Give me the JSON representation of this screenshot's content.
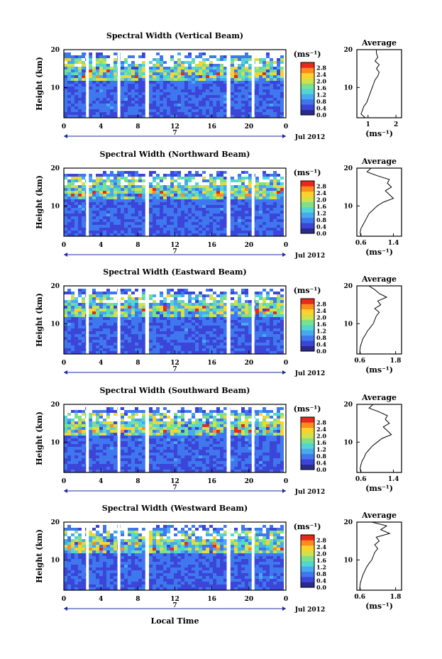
{
  "figure": {
    "x_axis_title": "Local Time",
    "colorbar_unit": "(ms⁻¹)",
    "colorbar_ticks": [
      "0.0",
      "0.4",
      "0.8",
      "1.2",
      "1.6",
      "2.0",
      "2.4",
      "2.8"
    ],
    "colorbar_colors": [
      "#2a2a8a",
      "#3b45d8",
      "#3f78ee",
      "#48a8f0",
      "#52d6d2",
      "#7ee08a",
      "#d2e04a",
      "#ffd12a",
      "#ff8a1e",
      "#e8281a"
    ],
    "date_label": "Jul 2012",
    "day_tick_label": "7",
    "average_title": "Average"
  },
  "chart_data": [
    {
      "type": "heatmap",
      "title": "Spectral Width (Vertical Beam)",
      "ylabel": "Height (km)",
      "xlabel": "Local Time",
      "x_ticks": [
        "0",
        "4",
        "8",
        "12",
        "16",
        "20",
        "0"
      ],
      "y_ticks": [
        "10",
        "20"
      ],
      "xlim": [
        0,
        24
      ],
      "ylim": [
        2,
        20
      ],
      "z_label": "(ms⁻¹)",
      "z_range": [
        0.0,
        2.8
      ],
      "data_gaps_hours": [
        [
          2.4,
          2.7
        ],
        [
          5.8,
          6.1
        ],
        [
          8.8,
          9.2
        ],
        [
          17.6,
          18.0
        ],
        [
          20.3,
          20.6
        ]
      ],
      "average_profile": {
        "title": "Average",
        "xlabel": "(ms⁻¹)",
        "x_ticks": [
          "1",
          "2"
        ],
        "xlim": [
          0.6,
          2.2
        ],
        "y_ticks": [
          "10",
          "20"
        ],
        "height_km": [
          2,
          3,
          4,
          5,
          6,
          7,
          8,
          9,
          10,
          11,
          12,
          13,
          14,
          15,
          16,
          17,
          18,
          19,
          20
        ],
        "value": [
          0.9,
          0.75,
          0.8,
          0.85,
          0.95,
          1.0,
          1.05,
          1.1,
          1.15,
          1.2,
          1.25,
          1.35,
          1.4,
          1.3,
          1.4,
          1.25,
          1.35,
          1.3,
          1.3
        ]
      }
    },
    {
      "type": "heatmap",
      "title": "Spectral Width (Northward Beam)",
      "ylabel": "Height (km)",
      "xlabel": "Local Time",
      "x_ticks": [
        "0",
        "4",
        "8",
        "12",
        "16",
        "20",
        "0"
      ],
      "y_ticks": [
        "10",
        "20"
      ],
      "xlim": [
        0,
        24
      ],
      "ylim": [
        2,
        20
      ],
      "z_label": "(ms⁻¹)",
      "z_range": [
        0.0,
        2.8
      ],
      "data_gaps_hours": [
        [
          2.4,
          2.7
        ],
        [
          8.8,
          9.2
        ],
        [
          17.6,
          18.0
        ],
        [
          20.3,
          20.6
        ]
      ],
      "average_profile": {
        "title": "Average",
        "xlabel": "(ms⁻¹)",
        "x_ticks": [
          "0.6",
          "1.4"
        ],
        "xlim": [
          0.5,
          1.6
        ],
        "y_ticks": [
          "10",
          "20"
        ],
        "height_km": [
          2,
          3,
          4,
          5,
          6,
          7,
          8,
          9,
          10,
          11,
          12,
          13,
          14,
          15,
          16,
          17,
          18,
          19,
          20
        ],
        "value": [
          0.6,
          0.58,
          0.6,
          0.65,
          0.7,
          0.75,
          0.8,
          0.9,
          1.0,
          1.15,
          1.4,
          1.3,
          1.2,
          1.35,
          1.25,
          1.3,
          1.0,
          0.75,
          0.85
        ]
      }
    },
    {
      "type": "heatmap",
      "title": "Spectral Width (Eastward Beam)",
      "ylabel": "Height (km)",
      "xlabel": "Local Time",
      "x_ticks": [
        "0",
        "4",
        "8",
        "12",
        "16",
        "20",
        "0"
      ],
      "y_ticks": [
        "10",
        "20"
      ],
      "xlim": [
        0,
        24
      ],
      "ylim": [
        2,
        20
      ],
      "z_label": "(ms⁻¹)",
      "z_range": [
        0.0,
        2.8
      ],
      "data_gaps_hours": [
        [
          2.4,
          2.7
        ],
        [
          5.8,
          6.1
        ],
        [
          8.8,
          9.2
        ],
        [
          17.6,
          18.0
        ],
        [
          20.3,
          20.6
        ]
      ],
      "average_profile": {
        "title": "Average",
        "xlabel": "(ms⁻¹)",
        "x_ticks": [
          "0.6",
          "1.8"
        ],
        "xlim": [
          0.5,
          2.0
        ],
        "y_ticks": [
          "10",
          "20"
        ],
        "height_km": [
          2,
          3,
          4,
          5,
          6,
          7,
          8,
          9,
          10,
          11,
          12,
          13,
          14,
          15,
          16,
          17,
          18,
          19,
          20
        ],
        "value": [
          0.62,
          0.6,
          0.62,
          0.66,
          0.7,
          0.78,
          0.85,
          0.95,
          1.05,
          1.1,
          1.15,
          1.25,
          1.1,
          1.3,
          1.2,
          1.5,
          1.25,
          1.1,
          0.9
        ]
      }
    },
    {
      "type": "heatmap",
      "title": "Spectral Width (Southward Beam)",
      "ylabel": "Height (km)",
      "xlabel": "Local Time",
      "x_ticks": [
        "0",
        "4",
        "8",
        "12",
        "16",
        "20",
        "0"
      ],
      "y_ticks": [
        "10",
        "20"
      ],
      "xlim": [
        0,
        24
      ],
      "ylim": [
        2,
        20
      ],
      "z_label": "(ms⁻¹)",
      "z_range": [
        0.0,
        2.8
      ],
      "data_gaps_hours": [
        [
          2.4,
          2.7
        ],
        [
          5.8,
          6.1
        ],
        [
          8.8,
          9.2
        ],
        [
          17.6,
          18.0
        ],
        [
          20.3,
          20.6
        ]
      ],
      "average_profile": {
        "title": "Average",
        "xlabel": "(ms⁻¹)",
        "x_ticks": [
          "0.6",
          "1.4"
        ],
        "xlim": [
          0.5,
          1.6
        ],
        "y_ticks": [
          "10",
          "20"
        ],
        "height_km": [
          2,
          3,
          4,
          5,
          6,
          7,
          8,
          9,
          10,
          11,
          12,
          13,
          14,
          15,
          16,
          17,
          18,
          19,
          20
        ],
        "value": [
          0.6,
          0.58,
          0.6,
          0.63,
          0.68,
          0.72,
          0.8,
          0.88,
          1.0,
          1.12,
          1.35,
          1.25,
          1.15,
          1.3,
          1.2,
          1.25,
          1.05,
          0.8,
          0.9
        ]
      }
    },
    {
      "type": "heatmap",
      "title": "Spectral Width (Westward Beam)",
      "ylabel": "Height (km)",
      "xlabel": "Local Time",
      "x_ticks": [
        "0",
        "4",
        "8",
        "12",
        "16",
        "20",
        "0"
      ],
      "y_ticks": [
        "10",
        "20"
      ],
      "xlim": [
        0,
        24
      ],
      "ylim": [
        2,
        20
      ],
      "z_label": "(ms⁻¹)",
      "z_range": [
        0.0,
        2.8
      ],
      "data_gaps_hours": [
        [
          2.4,
          2.7
        ],
        [
          5.8,
          6.1
        ],
        [
          8.8,
          9.2
        ],
        [
          17.6,
          18.0
        ],
        [
          20.3,
          20.6
        ]
      ],
      "average_profile": {
        "title": "Average",
        "xlabel": "(ms⁻¹)",
        "x_ticks": [
          "0.6",
          "1.8"
        ],
        "xlim": [
          0.5,
          2.0
        ],
        "y_ticks": [
          "10",
          "20"
        ],
        "height_km": [
          2,
          3,
          4,
          5,
          6,
          7,
          8,
          9,
          10,
          11,
          12,
          13,
          14,
          15,
          16,
          17,
          18,
          19,
          20
        ],
        "value": [
          0.62,
          0.6,
          0.62,
          0.66,
          0.7,
          0.76,
          0.82,
          0.9,
          1.0,
          1.05,
          1.1,
          1.2,
          1.1,
          1.25,
          1.15,
          1.6,
          1.3,
          1.5,
          1.0
        ]
      }
    }
  ]
}
